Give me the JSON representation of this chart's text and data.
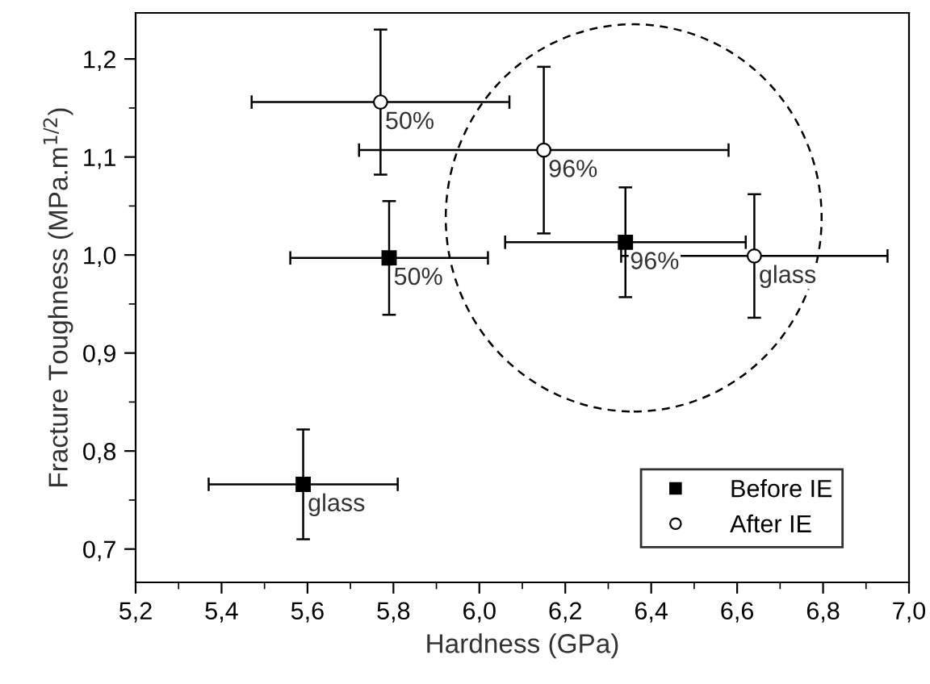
{
  "chart_data": {
    "type": "scatter",
    "xlabel": "Hardness (GPa)",
    "ylabel": "Fracture Toughness (MPa.m$^{1/2}$)",
    "xlim": [
      5.2,
      7.0
    ],
    "ylim": [
      0.666,
      1.247
    ],
    "xticks": [
      {
        "value": 5.2,
        "label": "5,2"
      },
      {
        "value": 5.4,
        "label": "5,4"
      },
      {
        "value": 5.6,
        "label": "5,6"
      },
      {
        "value": 5.8,
        "label": "5,8"
      },
      {
        "value": 6.0,
        "label": "6,0"
      },
      {
        "value": 6.2,
        "label": "6,2"
      },
      {
        "value": 6.4,
        "label": "6,4"
      },
      {
        "value": 6.6,
        "label": "6,6"
      },
      {
        "value": 6.8,
        "label": "6,8"
      },
      {
        "value": 7.0,
        "label": "7,0"
      }
    ],
    "yticks": [
      {
        "value": 0.7,
        "label": "0,7"
      },
      {
        "value": 0.8,
        "label": "0,8"
      },
      {
        "value": 0.9,
        "label": "0,9"
      },
      {
        "value": 1.0,
        "label": "1,0"
      },
      {
        "value": 1.1,
        "label": "1,1"
      },
      {
        "value": 1.2,
        "label": "1,2"
      }
    ],
    "grid": false,
    "legend": "bottom right",
    "series": [
      {
        "name": "Before IE",
        "color": "#000000",
        "marker": "square",
        "x": [
          5.59,
          5.79,
          6.34
        ],
        "values": [
          0.766,
          0.997,
          1.013
        ],
        "xerrors": [
          0.22,
          0.23,
          0.28
        ],
        "errors": [
          0.056,
          0.058,
          0.056
        ]
      },
      {
        "name": "After IE",
        "color": "#ffffff",
        "marker": "circle",
        "x": [
          5.77,
          6.15,
          6.64
        ],
        "values": [
          1.156,
          1.107,
          0.999
        ],
        "xerrors": [
          0.3,
          0.43,
          0.31
        ],
        "errors": [
          0.074,
          0.085,
          0.063
        ]
      }
    ],
    "annotations": [
      {
        "text": "glass",
        "x": 5.59,
        "y": 0.766
      },
      {
        "text": "50%",
        "x": 5.79,
        "y": 0.997
      },
      {
        "text": "96%",
        "x": 6.34,
        "y": 1.013
      },
      {
        "text": "50%",
        "x": 5.77,
        "y": 1.156
      },
      {
        "text": "96%",
        "x": 6.15,
        "y": 1.107
      },
      {
        "text": "glass",
        "x": 6.64,
        "y": 0.999
      }
    ]
  }
}
